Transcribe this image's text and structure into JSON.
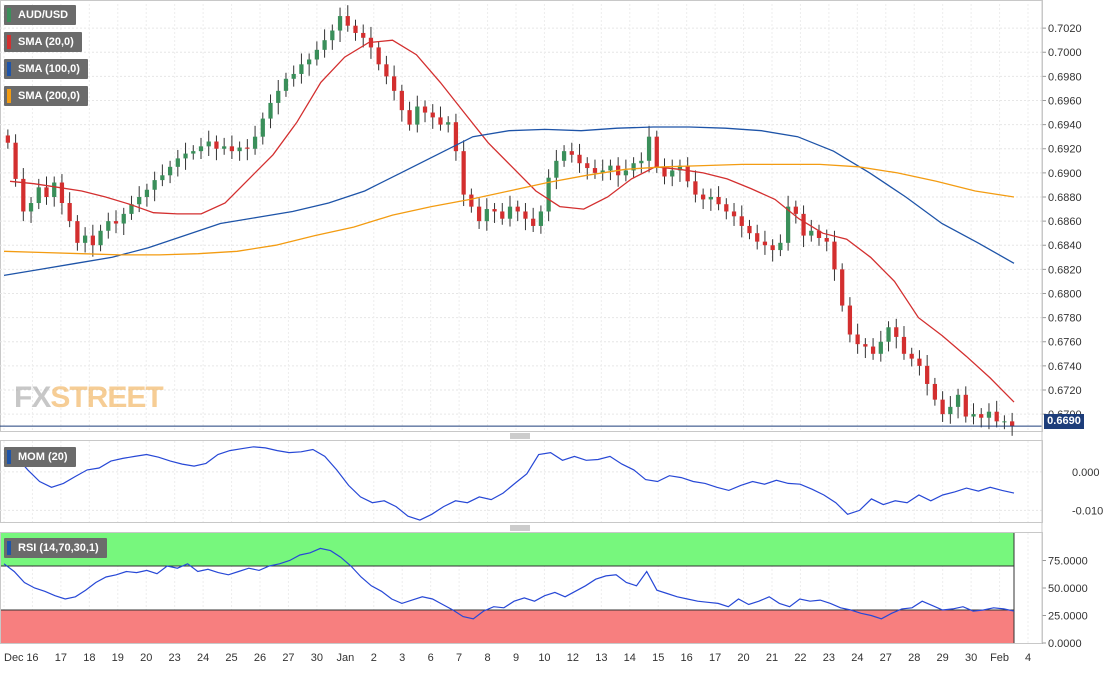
{
  "chart_data": [
    {
      "type": "candlestick",
      "panel": "price",
      "symbol": "AUD/USD",
      "last_price": "0.6690",
      "ylim": [
        0.6686,
        0.704
      ],
      "y_ticks": [
        "0.7020",
        "0.7000",
        "0.6980",
        "0.6960",
        "0.6940",
        "0.6920",
        "0.6900",
        "0.6880",
        "0.6860",
        "0.6840",
        "0.6820",
        "0.6800",
        "0.6780",
        "0.6760",
        "0.6740",
        "0.6720",
        "0.6700"
      ],
      "x_tick_labels": [
        "Dec",
        "16",
        "17",
        "18",
        "19",
        "20",
        "23",
        "24",
        "25",
        "26",
        "27",
        "30",
        "Jan",
        "2",
        "3",
        "6",
        "7",
        "8",
        "9",
        "10",
        "12",
        "13",
        "14",
        "15",
        "16",
        "17",
        "20",
        "21",
        "22",
        "23",
        "24",
        "27",
        "28",
        "29",
        "30",
        "Feb",
        "4"
      ],
      "close": [
        0.6925,
        0.6895,
        0.6868,
        0.6875,
        0.6888,
        0.688,
        0.6892,
        0.6875,
        0.686,
        0.6842,
        0.6848,
        0.684,
        0.6852,
        0.686,
        0.6858,
        0.6866,
        0.6874,
        0.688,
        0.6886,
        0.6894,
        0.6898,
        0.6905,
        0.6912,
        0.6916,
        0.6918,
        0.6922,
        0.6926,
        0.692,
        0.6922,
        0.6918,
        0.6921,
        0.692,
        0.693,
        0.6945,
        0.6958,
        0.6968,
        0.6978,
        0.6982,
        0.699,
        0.6994,
        0.7002,
        0.701,
        0.7018,
        0.703,
        0.7022,
        0.7016,
        0.7012,
        0.7004,
        0.699,
        0.698,
        0.6968,
        0.6952,
        0.694,
        0.6955,
        0.695,
        0.6946,
        0.694,
        0.6942,
        0.6918,
        0.6882,
        0.6872,
        0.686,
        0.687,
        0.6868,
        0.6862,
        0.6872,
        0.6868,
        0.6862,
        0.6856,
        0.6868,
        0.6896,
        0.691,
        0.6918,
        0.6915,
        0.6908,
        0.6904,
        0.69,
        0.6902,
        0.6906,
        0.6898,
        0.6902,
        0.6908,
        0.691,
        0.693,
        0.6905,
        0.6897,
        0.6902,
        0.6906,
        0.6893,
        0.6882,
        0.6878,
        0.688,
        0.6874,
        0.6868,
        0.6864,
        0.6856,
        0.685,
        0.6843,
        0.684,
        0.6836,
        0.6842,
        0.6872,
        0.6866,
        0.6848,
        0.6852,
        0.6846,
        0.6843,
        0.682,
        0.679,
        0.6766,
        0.6758,
        0.6756,
        0.675,
        0.676,
        0.6772,
        0.6764,
        0.675,
        0.6746,
        0.674,
        0.6725,
        0.6712,
        0.67,
        0.6706,
        0.6716,
        0.6698,
        0.67,
        0.6697,
        0.6702,
        0.6694,
        0.6694,
        0.669
      ],
      "series": [
        {
          "name": "SMA (20,0)",
          "color": "#d32f2f",
          "values": [
            0.6893,
            0.6891,
            0.6888,
            0.6885,
            0.688,
            0.6874,
            0.6867,
            0.6866,
            0.6866,
            0.6875,
            0.6895,
            0.6915,
            0.6942,
            0.6975,
            0.6996,
            0.7008,
            0.701,
            0.6998,
            0.6975,
            0.695,
            0.6925,
            0.6905,
            0.6885,
            0.6872,
            0.687,
            0.688,
            0.6895,
            0.6905,
            0.6903,
            0.69,
            0.6895,
            0.6887,
            0.6878,
            0.6862,
            0.685,
            0.6845,
            0.683,
            0.681,
            0.678,
            0.6765,
            0.6748,
            0.673,
            0.671
          ]
        },
        {
          "name": "SMA (100,0)",
          "color": "#1e54a8",
          "values": [
            0.6815,
            0.682,
            0.6825,
            0.683,
            0.6838,
            0.6848,
            0.6858,
            0.6863,
            0.6868,
            0.6875,
            0.6885,
            0.69,
            0.6915,
            0.693,
            0.6935,
            0.6936,
            0.6935,
            0.6937,
            0.6938,
            0.6938,
            0.6937,
            0.6935,
            0.693,
            0.6918,
            0.69,
            0.688,
            0.6858,
            0.6842,
            0.6825
          ]
        },
        {
          "name": "SMA (200,0)",
          "color": "#f39c12",
          "values": [
            0.6835,
            0.6834,
            0.6833,
            0.6832,
            0.6832,
            0.6833,
            0.6835,
            0.684,
            0.6848,
            0.6855,
            0.6865,
            0.6872,
            0.6878,
            0.6885,
            0.6892,
            0.6898,
            0.6903,
            0.6905,
            0.6906,
            0.6907,
            0.6907,
            0.6907,
            0.6905,
            0.69,
            0.6893,
            0.6885,
            0.688
          ]
        }
      ],
      "legend": [
        "AUD/USD",
        "SMA (20,0)",
        "SMA (100,0)",
        "SMA (200,0)"
      ],
      "watermark": {
        "part1": "FX",
        "part2": "STREET"
      }
    },
    {
      "type": "line",
      "panel": "momentum",
      "legend": "MOM (20)",
      "ylim": [
        -0.013,
        0.008
      ],
      "y_ticks": [
        "0.000",
        "-0.010"
      ],
      "series": [
        {
          "name": "MOM (20)",
          "color": "#2748d6",
          "values": [
            0.005,
            0.004,
            0.0005,
            -0.0025,
            -0.004,
            -0.003,
            -0.0012,
            0.0005,
            0.001,
            0.0028,
            0.0035,
            0.004,
            0.0045,
            0.0038,
            0.0028,
            0.002,
            0.0015,
            0.0022,
            0.0045,
            0.0055,
            0.006,
            0.0065,
            0.0062,
            0.0055,
            0.005,
            0.0052,
            0.0058,
            0.004,
            0.0005,
            -0.0035,
            -0.0065,
            -0.008,
            -0.0075,
            -0.009,
            -0.0115,
            -0.0125,
            -0.011,
            -0.009,
            -0.0075,
            -0.008,
            -0.0065,
            -0.0072,
            -0.0055,
            -0.003,
            -0.0005,
            0.0045,
            0.005,
            0.003,
            0.004,
            0.003,
            0.0032,
            0.004,
            0.002,
            0.0005,
            -0.002,
            -0.0025,
            -0.001,
            -0.0015,
            -0.0025,
            -0.003,
            -0.004,
            -0.0048,
            -0.0035,
            -0.0025,
            -0.0032,
            -0.0022,
            -0.003,
            -0.0032,
            -0.0045,
            -0.006,
            -0.008,
            -0.011,
            -0.01,
            -0.007,
            -0.0085,
            -0.0075,
            -0.008,
            -0.006,
            -0.0075,
            -0.006,
            -0.0052,
            -0.0042,
            -0.005,
            -0.004,
            -0.0048,
            -0.0055
          ]
        }
      ]
    },
    {
      "type": "line",
      "panel": "rsi",
      "legend": "RSI (14,70,30,1)",
      "ylim": [
        0,
        100
      ],
      "y_ticks": [
        "75.0000",
        "50.0000",
        "25.0000",
        "0.0000"
      ],
      "zones": {
        "overbought": 70,
        "oversold": 30,
        "overbought_color": "#77f77d",
        "oversold_color": "#f77f7f"
      },
      "series": [
        {
          "name": "RSI (14,70,30,1)",
          "color": "#2748d6",
          "values": [
            72,
            65,
            55,
            50,
            47,
            43,
            40,
            42,
            48,
            55,
            60,
            62,
            65,
            64,
            66,
            63,
            70,
            68,
            72,
            65,
            67,
            64,
            62,
            65,
            68,
            66,
            70,
            72,
            75,
            80,
            82,
            86,
            84,
            78,
            70,
            60,
            52,
            47,
            40,
            36,
            39,
            42,
            40,
            35,
            30,
            24,
            22,
            29,
            33,
            32,
            38,
            41,
            38,
            43,
            46,
            42,
            47,
            52,
            58,
            61,
            62,
            55,
            52,
            65,
            48,
            45,
            42,
            40,
            38,
            37,
            36,
            33,
            40,
            35,
            38,
            42,
            36,
            33,
            40,
            38,
            39,
            36,
            32,
            30,
            27,
            25,
            22,
            27,
            31,
            32,
            38,
            34,
            30,
            31,
            33,
            29,
            30,
            32,
            31,
            29
          ]
        }
      ]
    }
  ]
}
